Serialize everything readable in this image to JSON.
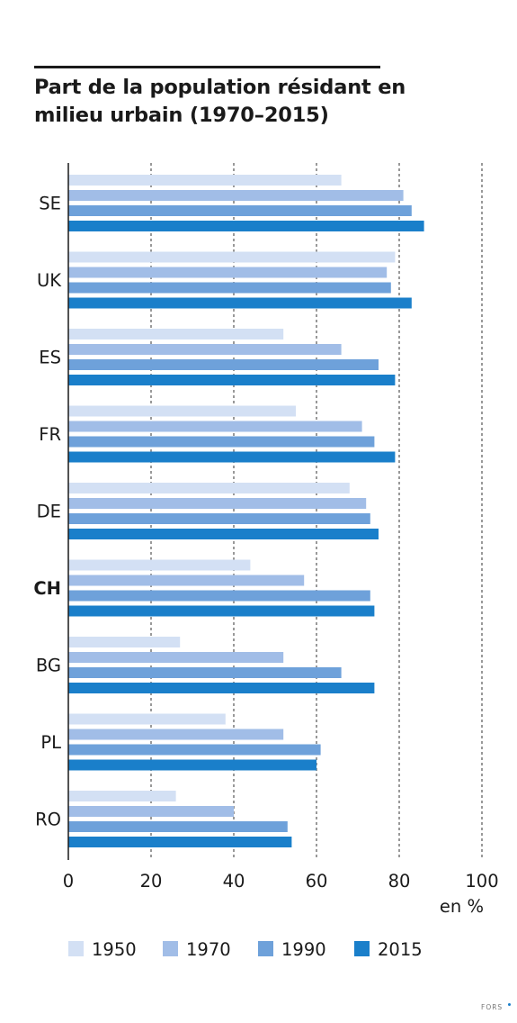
{
  "chart_data": {
    "type": "bar",
    "orientation": "horizontal",
    "title": "Part de la population résidant en milieu urbain (1970–2015)",
    "categories": [
      "SE",
      "UK",
      "ES",
      "FR",
      "DE",
      "CH",
      "BG",
      "PL",
      "RO"
    ],
    "highlight_category": "CH",
    "series": [
      {
        "name": "1950",
        "color": "#d3e0f4",
        "values": [
          66,
          79,
          52,
          55,
          68,
          44,
          27,
          38,
          26
        ]
      },
      {
        "name": "1970",
        "color": "#a1bde7",
        "values": [
          81,
          77,
          66,
          71,
          72,
          57,
          52,
          52,
          40
        ]
      },
      {
        "name": "1990",
        "color": "#6ea1da",
        "values": [
          83,
          78,
          75,
          74,
          73,
          73,
          66,
          61,
          53
        ]
      },
      {
        "name": "2015",
        "color": "#1a7fca",
        "values": [
          86,
          83,
          79,
          79,
          75,
          74,
          74,
          60,
          54
        ]
      }
    ],
    "x_ticks": [
      "0",
      "20",
      "40",
      "60",
      "80",
      "100"
    ],
    "x_unit": "en %",
    "xlim": [
      0,
      100
    ],
    "grid": "vertical dashed",
    "legend_position": "bottom"
  },
  "footer": {
    "logo": "FORS"
  }
}
